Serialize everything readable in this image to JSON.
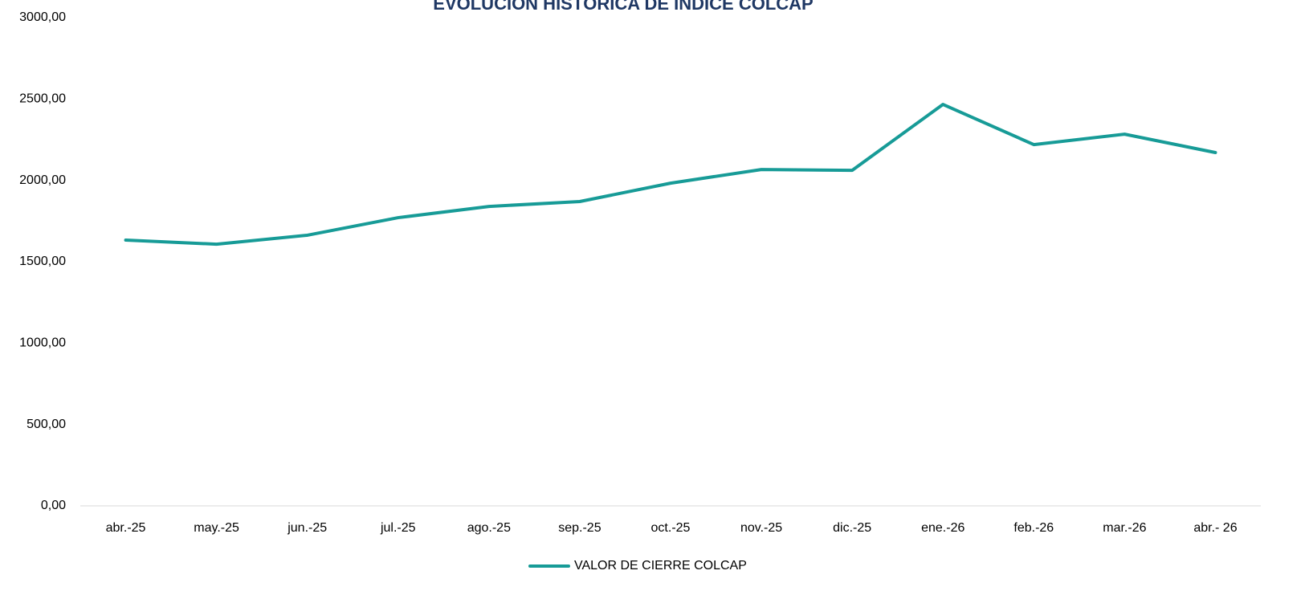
{
  "chart_data": {
    "type": "line",
    "title": "EVOLUCIÓN HISTÓRICA DE ÍNDICE COLCAP",
    "categories": [
      "abr.-25",
      "may.-25",
      "jun.-25",
      "jul.-25",
      "ago.-25",
      "sep.-25",
      "oct.-25",
      "nov.-25",
      "dic.-25",
      "ene.-26",
      "feb.-26",
      "mar.-26",
      "abr.- 26"
    ],
    "series": [
      {
        "name": "VALOR DE CIERRE COLCAP",
        "color": "#179b97",
        "values": [
          1633,
          1608,
          1663,
          1771,
          1840,
          1870,
          1983,
          2067,
          2062,
          2467,
          2220,
          2284,
          2171
        ]
      }
    ],
    "ylim": [
      0,
      3000
    ],
    "yticks": [
      {
        "value": 0,
        "label": "0,00"
      },
      {
        "value": 500,
        "label": "500,00"
      },
      {
        "value": 1000,
        "label": "1000,00"
      },
      {
        "value": 1500,
        "label": "1500,00"
      },
      {
        "value": 2000,
        "label": "2000,00"
      },
      {
        "value": 2500,
        "label": "2500,00"
      },
      {
        "value": 3000,
        "label": "3000,00"
      }
    ],
    "grid": false,
    "legend": "bottom"
  }
}
